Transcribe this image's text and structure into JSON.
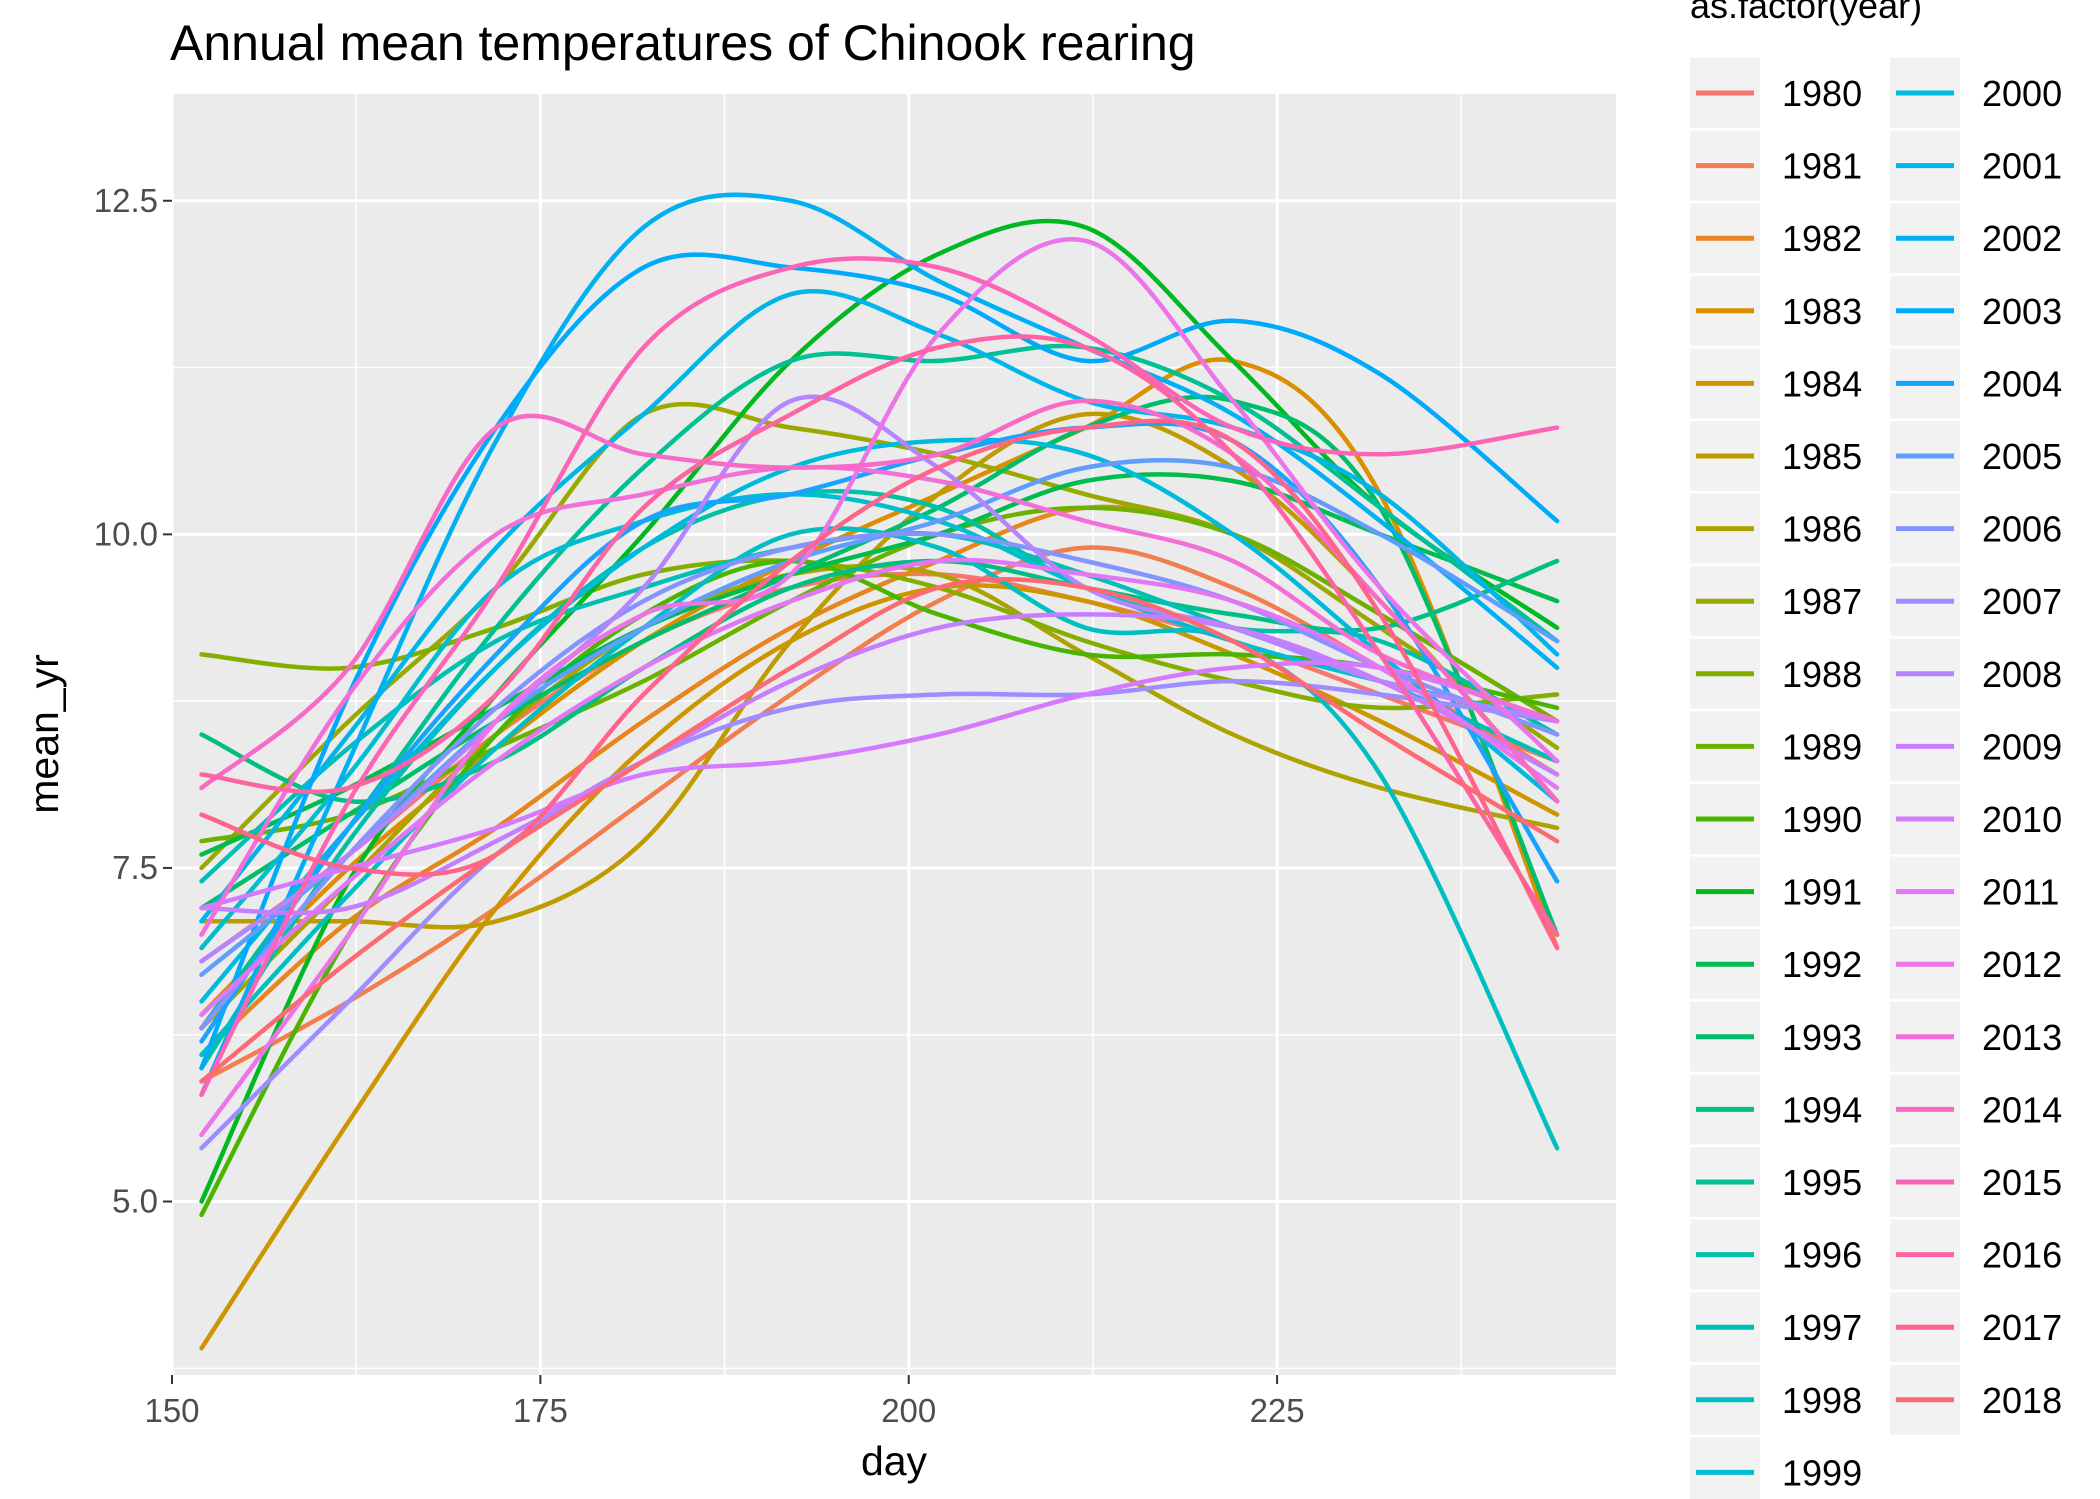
{
  "chart_data": {
    "type": "line",
    "title": "Annual mean temperatures of Chinook rearing",
    "xlabel": "day",
    "ylabel": "mean_yr",
    "xlim": [
      150,
      248
    ],
    "ylim": [
      3.7,
      13.3
    ],
    "x_ticks": [
      "150",
      "175",
      "200",
      "225"
    ],
    "y_ticks": [
      "5.0",
      "7.5",
      "10.0",
      "12.5"
    ],
    "grid": true,
    "legend_title": "as.factor(year)",
    "legend_placement": "right",
    "series": [
      {
        "name": "1980",
        "color": "#F8766D",
        "x": [
          152,
          162,
          172,
          182,
          192,
          202,
          212,
          222,
          232,
          244
        ],
        "y": [
          6.8,
          7.6,
          8.5,
          9.2,
          9.6,
          9.7,
          9.5,
          9.2,
          8.8,
          8.3
        ]
      },
      {
        "name": "1981",
        "color": "#F17D50",
        "x": [
          152,
          162,
          172,
          182,
          192,
          202,
          212,
          222,
          232,
          244
        ],
        "y": [
          5.9,
          6.5,
          7.2,
          8.0,
          8.8,
          9.5,
          9.9,
          9.6,
          9.0,
          8.2
        ]
      },
      {
        "name": "1982",
        "color": "#E7851E",
        "x": [
          152,
          162,
          172,
          182,
          192,
          202,
          212,
          222,
          232,
          244
        ],
        "y": [
          6.1,
          7.1,
          7.8,
          8.6,
          9.3,
          9.8,
          10.2,
          10.0,
          9.4,
          8.6
        ]
      },
      {
        "name": "1983",
        "color": "#DB8E00",
        "x": [
          152,
          162,
          172,
          182,
          192,
          202,
          212,
          222,
          232,
          244
        ],
        "y": [
          6.4,
          7.5,
          8.4,
          9.2,
          9.8,
          10.3,
          10.8,
          11.3,
          10.3,
          6.9
        ]
      },
      {
        "name": "1984",
        "color": "#CD9600",
        "x": [
          152,
          162,
          172,
          182,
          192,
          202,
          212,
          222,
          232,
          244
        ],
        "y": [
          3.9,
          5.6,
          7.2,
          8.4,
          9.2,
          9.6,
          9.5,
          9.1,
          8.6,
          7.9
        ]
      },
      {
        "name": "1985",
        "color": "#BE9C00",
        "x": [
          152,
          162,
          172,
          182,
          192,
          202,
          212,
          222,
          232,
          244
        ],
        "y": [
          7.1,
          7.1,
          7.1,
          7.7,
          9.2,
          10.3,
          10.9,
          10.5,
          9.5,
          8.0
        ]
      },
      {
        "name": "1986",
        "color": "#ADA200",
        "x": [
          152,
          162,
          172,
          182,
          192,
          202,
          212,
          222,
          232,
          244
        ],
        "y": [
          6.3,
          7.4,
          8.5,
          9.3,
          9.7,
          9.7,
          9.1,
          8.5,
          8.1,
          7.8
        ]
      },
      {
        "name": "1987",
        "color": "#9AA800",
        "x": [
          152,
          162,
          172,
          182,
          192,
          202,
          212,
          222,
          232,
          244
        ],
        "y": [
          7.5,
          8.6,
          9.6,
          10.9,
          10.8,
          10.6,
          10.3,
          10.0,
          9.3,
          8.4
        ]
      },
      {
        "name": "1988",
        "color": "#85AD00",
        "x": [
          152,
          162,
          172,
          182,
          192,
          202,
          212,
          222,
          232,
          244
        ],
        "y": [
          9.1,
          9.0,
          9.3,
          9.7,
          9.8,
          9.6,
          9.2,
          8.9,
          8.7,
          8.8
        ]
      },
      {
        "name": "1989",
        "color": "#6BB100",
        "x": [
          152,
          162,
          172,
          182,
          192,
          202,
          212,
          222,
          232,
          244
        ],
        "y": [
          7.7,
          7.9,
          8.4,
          8.9,
          9.5,
          10.0,
          10.2,
          10.0,
          9.4,
          8.6
        ]
      },
      {
        "name": "1990",
        "color": "#49B500",
        "x": [
          152,
          162,
          172,
          182,
          192,
          202,
          212,
          222,
          232,
          244
        ],
        "y": [
          4.9,
          7.0,
          8.5,
          9.4,
          9.8,
          9.4,
          9.1,
          9.1,
          9.0,
          8.7
        ]
      },
      {
        "name": "1991",
        "color": "#00B81F",
        "x": [
          152,
          162,
          172,
          182,
          192,
          202,
          212,
          222,
          232,
          244
        ],
        "y": [
          5.0,
          7.4,
          8.8,
          10.0,
          11.3,
          12.1,
          12.3,
          11.3,
          10.2,
          9.3
        ]
      },
      {
        "name": "1992",
        "color": "#00BB4E",
        "x": [
          152,
          162,
          172,
          182,
          192,
          202,
          212,
          222,
          232,
          244
        ],
        "y": [
          7.6,
          8.1,
          8.7,
          9.3,
          9.7,
          10.0,
          10.4,
          10.4,
          10.0,
          9.5
        ]
      },
      {
        "name": "1993",
        "color": "#00BD6B",
        "x": [
          152,
          162,
          172,
          182,
          192,
          202,
          212,
          222,
          232,
          244
        ],
        "y": [
          7.2,
          7.9,
          8.6,
          9.2,
          9.7,
          10.2,
          10.8,
          11.0,
          10.2,
          7.0
        ]
      },
      {
        "name": "1994",
        "color": "#00BF82",
        "x": [
          152,
          162,
          172,
          182,
          192,
          202,
          212,
          222,
          232,
          244
        ],
        "y": [
          8.5,
          8.0,
          8.3,
          9.0,
          9.6,
          9.8,
          9.6,
          9.4,
          9.3,
          9.8
        ]
      },
      {
        "name": "1995",
        "color": "#00C094",
        "x": [
          152,
          162,
          172,
          182,
          192,
          202,
          212,
          222,
          232,
          244
        ],
        "y": [
          6.3,
          7.8,
          9.3,
          10.5,
          11.3,
          11.3,
          11.4,
          11.0,
          10.2,
          9.2
        ]
      },
      {
        "name": "1996",
        "color": "#00C1A5",
        "x": [
          152,
          162,
          172,
          182,
          192,
          202,
          212,
          222,
          232,
          244
        ],
        "y": [
          6.0,
          7.7,
          9.0,
          9.9,
          10.3,
          10.2,
          9.6,
          9.3,
          9.2,
          8.5
        ]
      },
      {
        "name": "1997",
        "color": "#00C0B5",
        "x": [
          152,
          162,
          172,
          182,
          192,
          202,
          212,
          222,
          232,
          244
        ],
        "y": [
          7.4,
          8.4,
          9.2,
          9.6,
          9.9,
          10.0,
          9.7,
          9.3,
          8.9,
          8.3
        ]
      },
      {
        "name": "1998",
        "color": "#00BFC3",
        "x": [
          152,
          162,
          172,
          182,
          192,
          202,
          212,
          222,
          232,
          244
        ],
        "y": [
          6.1,
          7.3,
          8.4,
          9.3,
          10.0,
          9.9,
          9.3,
          9.2,
          8.2,
          5.4
        ]
      },
      {
        "name": "1999",
        "color": "#00BDD0",
        "x": [
          152,
          162,
          172,
          182,
          192,
          202,
          212,
          222,
          232,
          244
        ],
        "y": [
          6.9,
          8.2,
          9.6,
          10.1,
          10.3,
          10.1,
          9.6,
          9.2,
          8.9,
          8.6
        ]
      },
      {
        "name": "2000",
        "color": "#00BADD",
        "x": [
          152,
          162,
          172,
          182,
          192,
          202,
          212,
          222,
          232,
          244
        ],
        "y": [
          6.5,
          7.8,
          9.0,
          9.9,
          10.5,
          10.7,
          10.6,
          10.0,
          9.1,
          8.0
        ]
      },
      {
        "name": "2001",
        "color": "#00B5E8",
        "x": [
          152,
          162,
          172,
          182,
          192,
          202,
          212,
          222,
          232,
          244
        ],
        "y": [
          7.1,
          8.5,
          9.9,
          10.9,
          11.8,
          11.5,
          11.0,
          10.8,
          10.3,
          9.1
        ]
      },
      {
        "name": "2002",
        "color": "#00B0F2",
        "x": [
          152,
          162,
          172,
          182,
          192,
          202,
          212,
          222,
          232,
          244
        ],
        "y": [
          5.8,
          8.3,
          10.7,
          12.3,
          12.5,
          11.9,
          11.4,
          10.9,
          10.1,
          9.0
        ]
      },
      {
        "name": "2003",
        "color": "#00AAFA",
        "x": [
          152,
          162,
          172,
          182,
          192,
          202,
          212,
          222,
          232,
          244
        ],
        "y": [
          6.0,
          8.8,
          10.8,
          12.0,
          12.0,
          11.8,
          11.3,
          11.6,
          11.2,
          10.1
        ]
      },
      {
        "name": "2004",
        "color": "#19A3FF",
        "x": [
          152,
          162,
          172,
          182,
          192,
          202,
          212,
          222,
          232,
          244
        ],
        "y": [
          6.2,
          7.8,
          9.1,
          10.1,
          10.3,
          10.6,
          10.8,
          10.7,
          9.6,
          7.4
        ]
      },
      {
        "name": "2005",
        "color": "#619CFF",
        "x": [
          152,
          162,
          172,
          182,
          192,
          202,
          212,
          222,
          232,
          244
        ],
        "y": [
          6.7,
          7.6,
          8.6,
          9.3,
          9.8,
          10.1,
          10.5,
          10.5,
          10.0,
          9.2
        ]
      },
      {
        "name": "2006",
        "color": "#8494FF",
        "x": [
          152,
          162,
          172,
          182,
          192,
          202,
          212,
          222,
          232,
          244
        ],
        "y": [
          6.3,
          7.6,
          8.7,
          9.5,
          9.9,
          10.0,
          9.8,
          9.5,
          9.0,
          8.5
        ]
      },
      {
        "name": "2007",
        "color": "#9F8CFF",
        "x": [
          152,
          162,
          172,
          182,
          192,
          202,
          212,
          222,
          232,
          244
        ],
        "y": [
          5.4,
          6.5,
          7.6,
          8.3,
          8.7,
          8.8,
          8.8,
          8.9,
          8.8,
          8.6
        ]
      },
      {
        "name": "2008",
        "color": "#B385FF",
        "x": [
          152,
          162,
          172,
          182,
          192,
          202,
          212,
          222,
          232,
          244
        ],
        "y": [
          6.8,
          7.6,
          8.6,
          9.6,
          11.0,
          10.5,
          9.6,
          9.3,
          8.9,
          8.6
        ]
      },
      {
        "name": "2009",
        "color": "#C67EFF",
        "x": [
          152,
          162,
          172,
          182,
          192,
          202,
          212,
          222,
          232,
          244
        ],
        "y": [
          7.2,
          7.2,
          7.7,
          8.3,
          8.9,
          9.3,
          9.4,
          9.3,
          8.9,
          8.2
        ]
      },
      {
        "name": "2010",
        "color": "#D57AFF",
        "x": [
          152,
          162,
          172,
          182,
          192,
          202,
          212,
          222,
          232,
          244
        ],
        "y": [
          7.2,
          7.5,
          7.8,
          8.2,
          8.3,
          8.5,
          8.8,
          9.0,
          9.0,
          8.6
        ]
      },
      {
        "name": "2011",
        "color": "#E177F5",
        "x": [
          152,
          162,
          172,
          182,
          192,
          202,
          212,
          222,
          232,
          244
        ],
        "y": [
          6.4,
          7.4,
          8.3,
          9.0,
          9.5,
          9.8,
          9.7,
          9.5,
          9.0,
          8.1
        ]
      },
      {
        "name": "2012",
        "color": "#EB74E8",
        "x": [
          152,
          162,
          172,
          182,
          192,
          202,
          212,
          222,
          232,
          244
        ],
        "y": [
          5.5,
          7.0,
          8.6,
          9.4,
          9.7,
          11.5,
          12.2,
          11.0,
          9.6,
          8.3
        ]
      },
      {
        "name": "2013",
        "color": "#F26FD9",
        "x": [
          152,
          162,
          172,
          182,
          192,
          202,
          212,
          222,
          232,
          244
        ],
        "y": [
          7.0,
          8.8,
          10.0,
          10.3,
          10.5,
          10.4,
          10.1,
          9.8,
          9.1,
          8.6
        ]
      },
      {
        "name": "2014",
        "color": "#F869C8",
        "x": [
          152,
          162,
          172,
          182,
          192,
          202,
          212,
          222,
          232,
          244
        ],
        "y": [
          8.1,
          9.0,
          10.8,
          10.6,
          10.5,
          10.6,
          11.0,
          10.6,
          9.5,
          8.0
        ]
      },
      {
        "name": "2015",
        "color": "#FC65B6",
        "x": [
          152,
          162,
          172,
          182,
          192,
          202,
          212,
          222,
          232,
          244
        ],
        "y": [
          5.8,
          8.0,
          9.6,
          11.4,
          12.0,
          12.0,
          11.5,
          10.8,
          10.6,
          10.8
        ]
      },
      {
        "name": "2016",
        "color": "#FE63A2",
        "x": [
          152,
          162,
          172,
          182,
          192,
          202,
          212,
          222,
          232,
          244
        ],
        "y": [
          8.2,
          8.1,
          8.8,
          10.2,
          10.9,
          11.4,
          11.4,
          10.6,
          9.1,
          7.0
        ]
      },
      {
        "name": "2017",
        "color": "#FF648C",
        "x": [
          152,
          162,
          172,
          182,
          192,
          202,
          212,
          222,
          232,
          244
        ],
        "y": [
          7.9,
          7.5,
          7.6,
          8.8,
          9.8,
          10.5,
          10.8,
          10.7,
          9.4,
          6.9
        ]
      },
      {
        "name": "2018",
        "color": "#FC6A74",
        "x": [
          152,
          162,
          172,
          182,
          192,
          202,
          212,
          222,
          232,
          244
        ],
        "y": [
          5.9,
          6.8,
          7.6,
          8.3,
          9.0,
          9.6,
          9.6,
          9.2,
          8.5,
          7.7
        ]
      }
    ]
  }
}
